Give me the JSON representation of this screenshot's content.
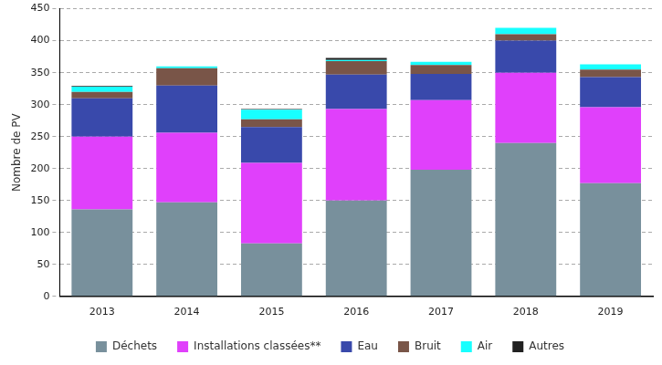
{
  "chart_data": {
    "type": "bar",
    "y_label": "Nombre de PV",
    "categories": [
      "2013",
      "2014",
      "2015",
      "2016",
      "2017",
      "2018",
      "2019"
    ],
    "series": [
      {
        "name": "Déchets",
        "color": "#78909c",
        "values": [
          136,
          147,
          83,
          150,
          198,
          240,
          177
        ]
      },
      {
        "name": "Installations classées**",
        "color": "#e040fb",
        "values": [
          114,
          109,
          126,
          143,
          109,
          110,
          119
        ]
      },
      {
        "name": "Eau",
        "color": "#3949ab",
        "values": [
          60,
          74,
          56,
          54,
          41,
          50,
          47
        ]
      },
      {
        "name": "Bruit",
        "color": "#795548",
        "values": [
          10,
          27,
          12,
          21,
          14,
          10,
          12
        ]
      },
      {
        "name": "Air",
        "color": "#18ffff",
        "values": [
          8,
          3,
          15,
          2,
          5,
          10,
          8
        ]
      },
      {
        "name": "Autres",
        "color": "#212121",
        "values": [
          1,
          0,
          1,
          3,
          0,
          0,
          0
        ]
      }
    ],
    "stacked": true,
    "ylim": [
      0,
      450
    ],
    "yticks": [
      0,
      50,
      100,
      150,
      200,
      250,
      300,
      350,
      400,
      450
    ],
    "grid": true,
    "legend": "bottom"
  }
}
